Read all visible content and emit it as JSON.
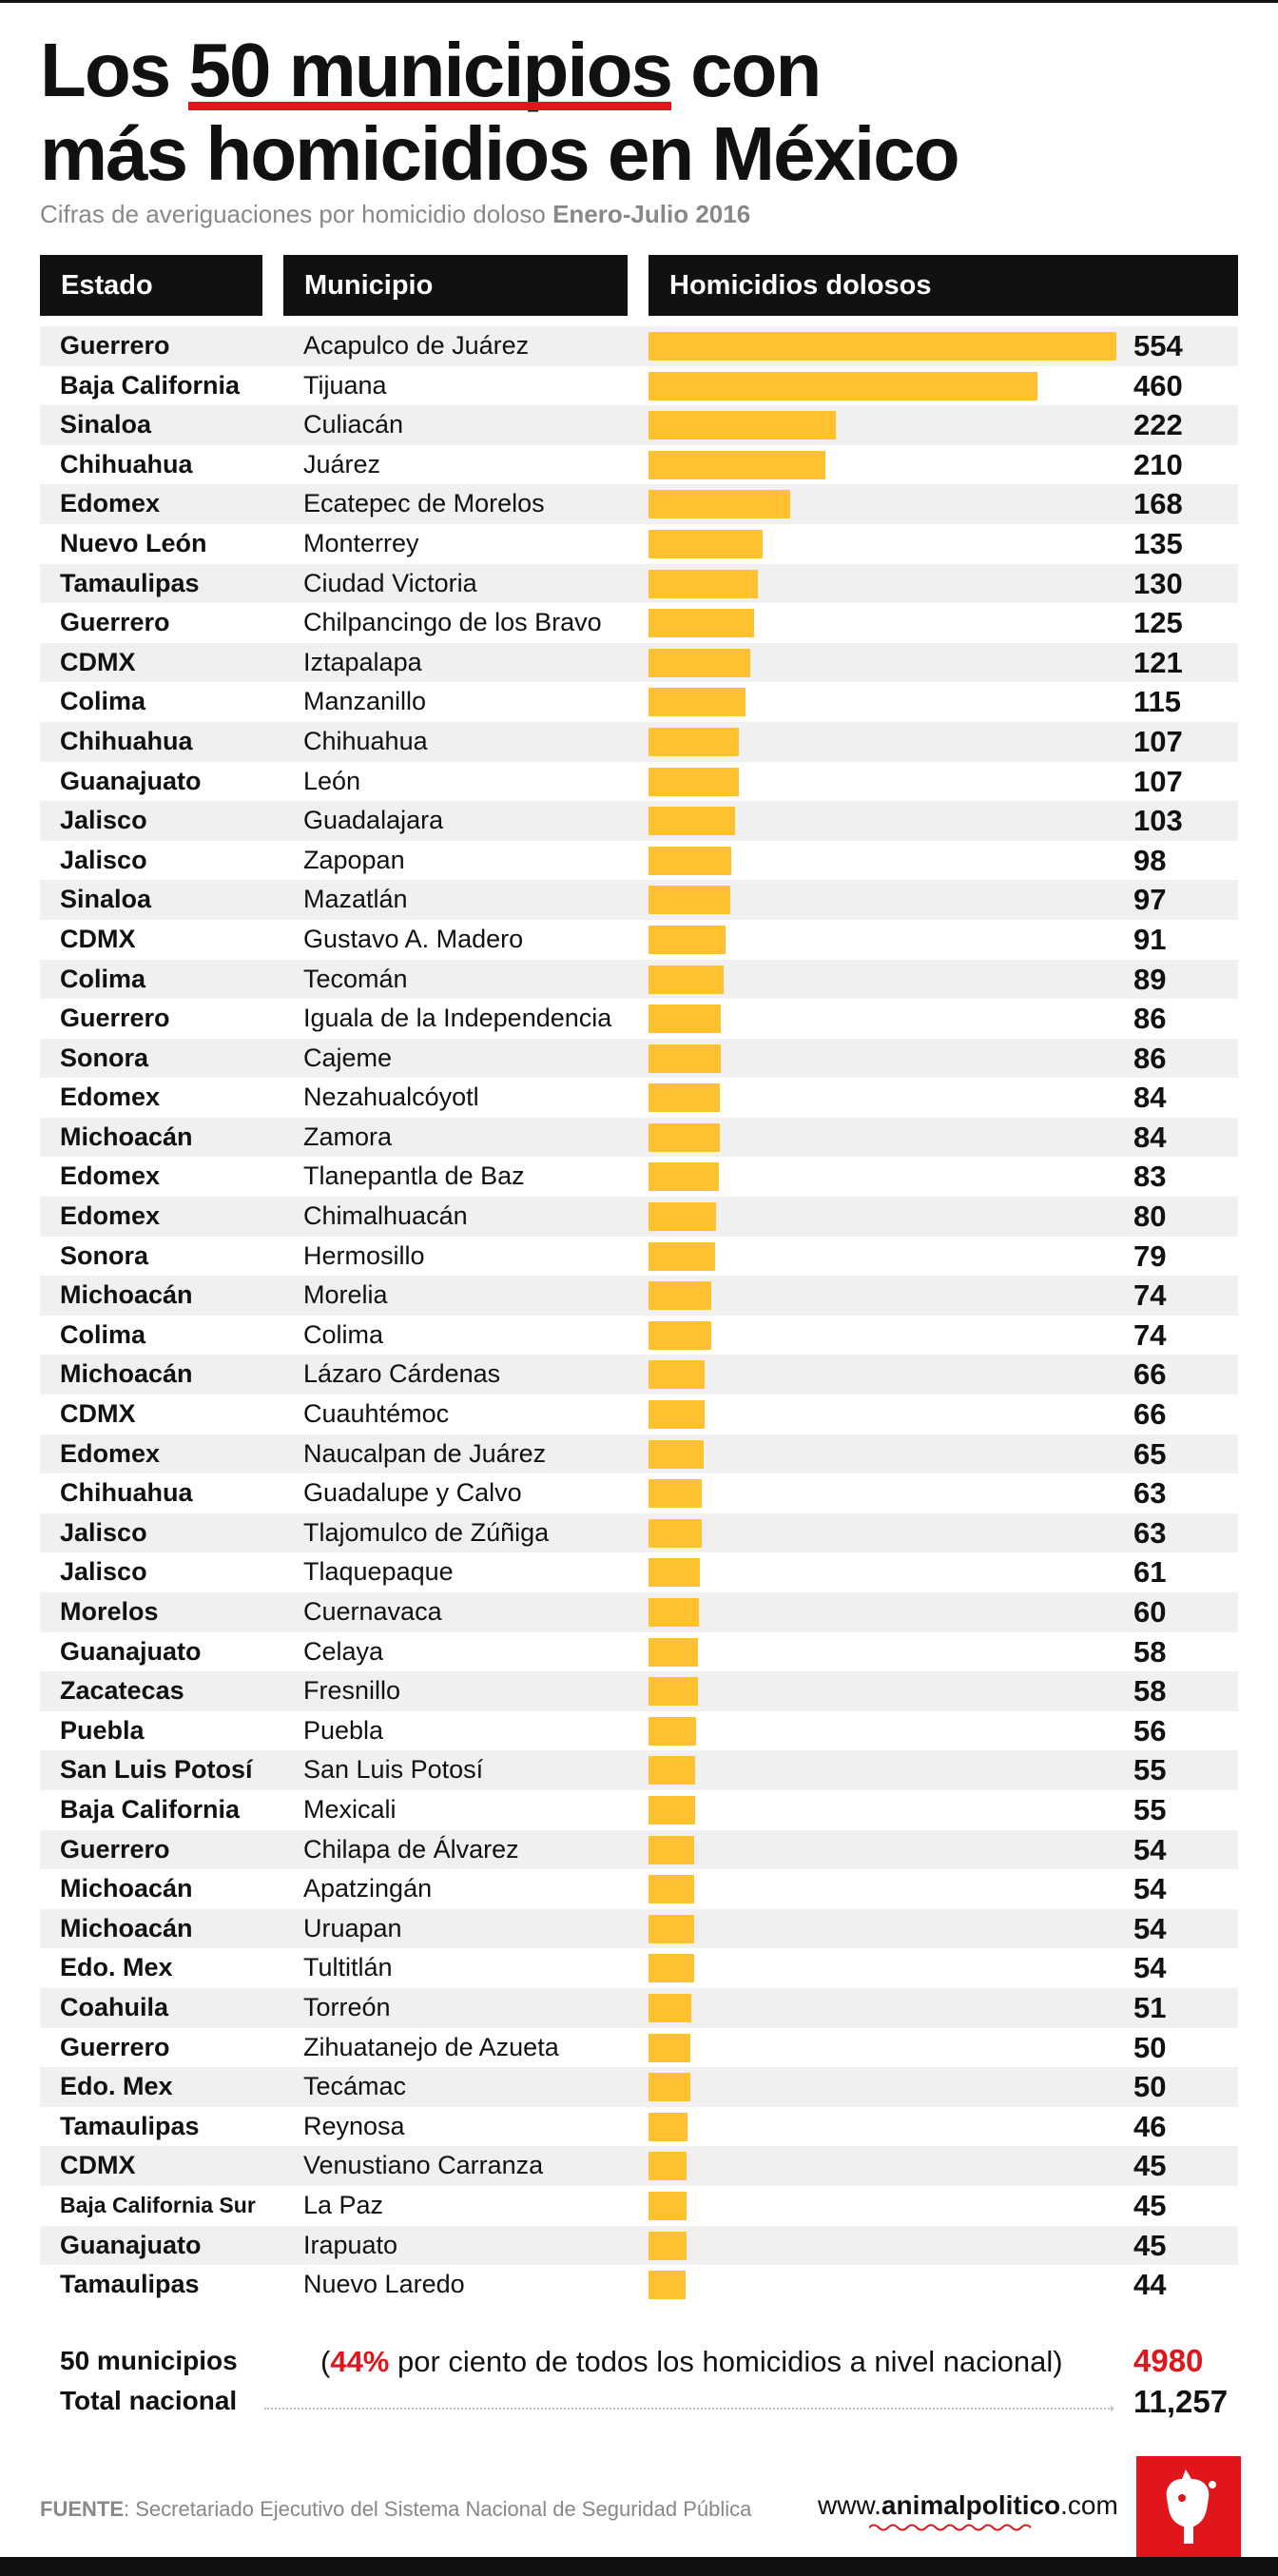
{
  "header": {
    "title_pre": "Los ",
    "title_highlight": "50 municipios",
    "title_post": " con",
    "title_line2": "más homicidios en México",
    "subtitle_pre": "Cifras de averiguaciones por homicidio doloso ",
    "subtitle_bold": "Enero-Julio 2016"
  },
  "columns": [
    "Estado",
    "Municipio",
    "Homicidios dolosos"
  ],
  "chart_data": {
    "type": "bar",
    "orientation": "horizontal",
    "value_label": "Homicidios dolosos",
    "columns": [
      "Estado",
      "Municipio",
      "Homicidios dolosos"
    ],
    "xlim": [
      0,
      554
    ],
    "rows": [
      {
        "estado": "Guerrero",
        "municipio": "Acapulco de Juárez",
        "value": 554
      },
      {
        "estado": "Baja California",
        "municipio": "Tijuana",
        "value": 460
      },
      {
        "estado": "Sinaloa",
        "municipio": "Culiacán",
        "value": 222
      },
      {
        "estado": "Chihuahua",
        "municipio": "Juárez",
        "value": 210
      },
      {
        "estado": "Edomex",
        "municipio": "Ecatepec de Morelos",
        "value": 168
      },
      {
        "estado": "Nuevo León",
        "municipio": "Monterrey",
        "value": 135
      },
      {
        "estado": "Tamaulipas",
        "municipio": "Ciudad Victoria",
        "value": 130
      },
      {
        "estado": "Guerrero",
        "municipio": "Chilpancingo de los Bravo",
        "value": 125
      },
      {
        "estado": "CDMX",
        "municipio": "Iztapalapa",
        "value": 121
      },
      {
        "estado": "Colima",
        "municipio": "Manzanillo",
        "value": 115
      },
      {
        "estado": "Chihuahua",
        "municipio": "Chihuahua",
        "value": 107
      },
      {
        "estado": "Guanajuato",
        "municipio": "León",
        "value": 107
      },
      {
        "estado": "Jalisco",
        "municipio": "Guadalajara",
        "value": 103
      },
      {
        "estado": "Jalisco",
        "municipio": "Zapopan",
        "value": 98
      },
      {
        "estado": "Sinaloa",
        "municipio": "Mazatlán",
        "value": 97
      },
      {
        "estado": "CDMX",
        "municipio": "Gustavo A. Madero",
        "value": 91
      },
      {
        "estado": "Colima",
        "municipio": "Tecomán",
        "value": 89
      },
      {
        "estado": "Guerrero",
        "municipio": "Iguala de la Independencia",
        "value": 86
      },
      {
        "estado": "Sonora",
        "municipio": "Cajeme",
        "value": 86
      },
      {
        "estado": "Edomex",
        "municipio": "Nezahualcóyotl",
        "value": 84
      },
      {
        "estado": "Michoacán",
        "municipio": "Zamora",
        "value": 84
      },
      {
        "estado": "Edomex",
        "municipio": "Tlanepantla de Baz",
        "value": 83
      },
      {
        "estado": "Edomex",
        "municipio": "Chimalhuacán",
        "value": 80
      },
      {
        "estado": "Sonora",
        "municipio": "Hermosillo",
        "value": 79
      },
      {
        "estado": "Michoacán",
        "municipio": "Morelia",
        "value": 74
      },
      {
        "estado": "Colima",
        "municipio": "Colima",
        "value": 74
      },
      {
        "estado": "Michoacán",
        "municipio": "Lázaro Cárdenas",
        "value": 66
      },
      {
        "estado": "CDMX",
        "municipio": "Cuauhtémoc",
        "value": 66
      },
      {
        "estado": "Edomex",
        "municipio": "Naucalpan de Juárez",
        "value": 65
      },
      {
        "estado": "Chihuahua",
        "municipio": "Guadalupe y Calvo",
        "value": 63
      },
      {
        "estado": "Jalisco",
        "municipio": "Tlajomulco de Zúñiga",
        "value": 63
      },
      {
        "estado": "Jalisco",
        "municipio": "Tlaquepaque",
        "value": 61
      },
      {
        "estado": "Morelos",
        "municipio": "Cuernavaca",
        "value": 60
      },
      {
        "estado": "Guanajuato",
        "municipio": "Celaya",
        "value": 58
      },
      {
        "estado": "Zacatecas",
        "municipio": "Fresnillo",
        "value": 58
      },
      {
        "estado": "Puebla",
        "municipio": "Puebla",
        "value": 56
      },
      {
        "estado": "San Luis Potosí",
        "municipio": "San Luis Potosí",
        "value": 55
      },
      {
        "estado": "Baja California",
        "municipio": "Mexicali",
        "value": 55
      },
      {
        "estado": "Guerrero",
        "municipio": "Chilapa de Álvarez",
        "value": 54
      },
      {
        "estado": "Michoacán",
        "municipio": "Apatzingán",
        "value": 54
      },
      {
        "estado": "Michoacán",
        "municipio": "Uruapan",
        "value": 54
      },
      {
        "estado": "Edo. Mex",
        "municipio": "Tultitlán",
        "value": 54
      },
      {
        "estado": "Coahuila",
        "municipio": "Torreón",
        "value": 51
      },
      {
        "estado": "Guerrero",
        "municipio": "Zihuatanejo de Azueta",
        "value": 50
      },
      {
        "estado": "Edo. Mex",
        "municipio": "Tecámac",
        "value": 50
      },
      {
        "estado": "Tamaulipas",
        "municipio": "Reynosa",
        "value": 46
      },
      {
        "estado": "CDMX",
        "municipio": "Venustiano Carranza",
        "value": 45
      },
      {
        "estado": "Baja California Sur",
        "municipio": "La Paz",
        "value": 45
      },
      {
        "estado": "Guanajuato",
        "municipio": "Irapuato",
        "value": 45
      },
      {
        "estado": "Tamaulipas",
        "municipio": "Nuevo Laredo",
        "value": 44
      }
    ]
  },
  "summary": {
    "label_50": "50 municipios",
    "note_open": "(",
    "note_pct": "44%",
    "note_rest": " por ciento de todos los homicidios a nivel nacional)",
    "value_50": "4980",
    "label_total": "Total nacional",
    "value_total": "11,257"
  },
  "footer": {
    "source_label": "FUENTE",
    "source_text": ": Secretariado Ejecutivo del Sistema Nacional de Seguridad Pública",
    "brand_pre": "www.",
    "brand_bold": "animalpolitico",
    "brand_post": ".com"
  },
  "colors": {
    "bar": "#ffc130",
    "accent_red": "#e0161b",
    "header_bg": "#111111",
    "row_stripe": "#f0f0f0"
  }
}
